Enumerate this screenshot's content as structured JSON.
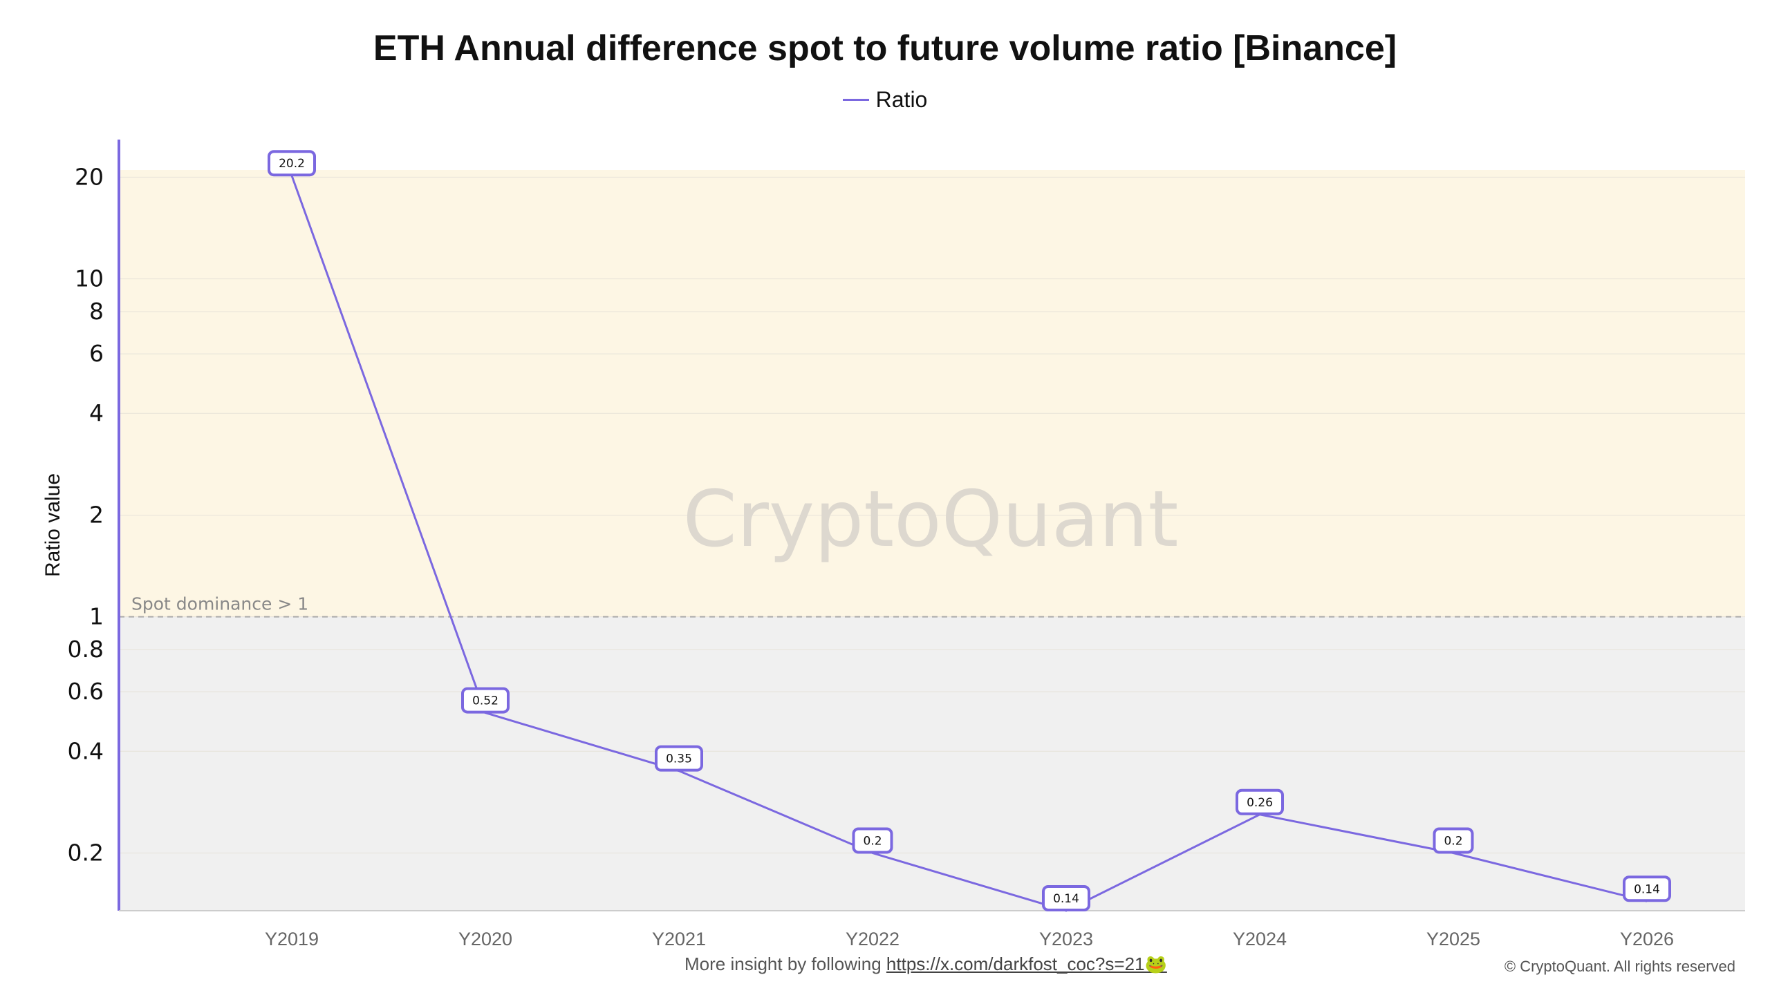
{
  "chart_data": {
    "type": "line",
    "title": "ETH Annual difference spot to future volume ratio [Binance]",
    "ylabel": "Ratio value",
    "xlabel": "",
    "y_scale": "log",
    "ylim": [
      0.135,
      21
    ],
    "y_ticks": [
      20,
      10,
      8,
      6,
      4,
      2,
      1,
      0.8,
      0.6,
      0.4,
      0.2
    ],
    "categories": [
      "Y2019",
      "Y2020",
      "Y2021",
      "Y2022",
      "Y2023",
      "Y2024",
      "Y2025",
      "Y2026"
    ],
    "series": [
      {
        "name": "Ratio",
        "color": "#7b68e0",
        "values": [
          20.2,
          0.52,
          0.35,
          0.2,
          0.135,
          0.26,
          0.2,
          0.144
        ],
        "data_labels": [
          "20.2",
          "0.52",
          "0.35",
          "0.2",
          "0.14",
          "0.26",
          "0.2",
          "0.14"
        ]
      }
    ],
    "legend": {
      "position": "top-center",
      "entries": [
        "Ratio"
      ]
    },
    "bands": [
      {
        "from": 1,
        "to": 21,
        "color": "#fdf6e4"
      },
      {
        "from": 0.135,
        "to": 1,
        "color": "#f0f0f0"
      }
    ],
    "reference_line": {
      "value": 1,
      "label": "Spot dominance > 1",
      "style": "dashed"
    },
    "grid": true,
    "watermark": "CryptoQuant"
  },
  "footer": {
    "text": "More insight by following ",
    "link": "https://x.com/darkfost_coc?s=21",
    "emoji": "🐸"
  },
  "copyright": "© CryptoQuant. All rights reserved"
}
